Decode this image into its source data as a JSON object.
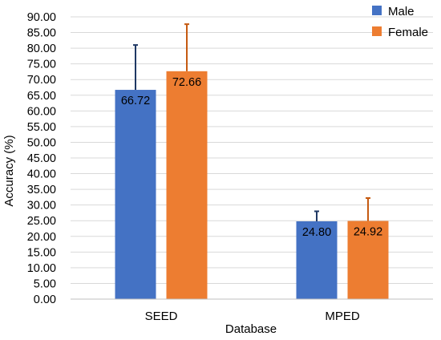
{
  "chart_data": {
    "type": "bar",
    "title": "",
    "xlabel": "Database",
    "ylabel": "Accuracy (%)",
    "categories": [
      "SEED",
      "MPED"
    ],
    "series": [
      {
        "name": "Male",
        "color": "#4472C4",
        "error_color": "#1F3864",
        "values": [
          66.72,
          24.8
        ],
        "errors": [
          14.3,
          3.2
        ]
      },
      {
        "name": "Female",
        "color": "#ED7D31",
        "error_color": "#C55A11",
        "values": [
          72.66,
          24.92
        ],
        "errors": [
          15.0,
          7.3
        ]
      }
    ],
    "data_labels": [
      [
        "66.72",
        "24.80"
      ],
      [
        "72.66",
        "24.92"
      ]
    ],
    "ylim": [
      0,
      90
    ],
    "yticks": [
      "0.00",
      "5.00",
      "10.00",
      "15.00",
      "20.00",
      "25.00",
      "30.00",
      "35.00",
      "40.00",
      "45.00",
      "50.00",
      "55.00",
      "60.00",
      "65.00",
      "70.00",
      "75.00",
      "80.00",
      "85.00",
      "90.00"
    ],
    "ytick_values": [
      0,
      5,
      10,
      15,
      20,
      25,
      30,
      35,
      40,
      45,
      50,
      55,
      60,
      65,
      70,
      75,
      80,
      85,
      90
    ],
    "grid": "horizontal",
    "legend": "top-right"
  }
}
